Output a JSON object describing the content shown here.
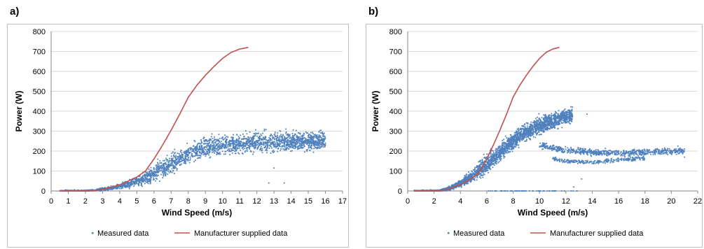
{
  "chart_data": [
    {
      "panel_label": "a)",
      "type": "scatter",
      "xlabel": "Wind Speed (m/s)",
      "ylabel": "Power (W)",
      "xlim": [
        0,
        17
      ],
      "ylim": [
        0,
        800
      ],
      "xticks": [
        0,
        1,
        2,
        3,
        4,
        5,
        6,
        7,
        8,
        9,
        10,
        11,
        12,
        13,
        14,
        15,
        16,
        17
      ],
      "yticks": [
        0,
        100,
        200,
        300,
        400,
        500,
        600,
        700,
        800
      ],
      "grid": "horizontal",
      "legend_position": "bottom",
      "series": [
        {
          "name": "Measured data",
          "kind": "scatter",
          "color": "#4f81bd",
          "trend": [
            [
              0.5,
              0
            ],
            [
              2.0,
              0
            ],
            [
              2.5,
              3
            ],
            [
              3.0,
              8
            ],
            [
              3.5,
              14
            ],
            [
              4.0,
              22
            ],
            [
              4.5,
              33
            ],
            [
              5.0,
              47
            ],
            [
              5.5,
              65
            ],
            [
              6.0,
              87
            ],
            [
              6.5,
              112
            ],
            [
              7.0,
              138
            ],
            [
              7.5,
              163
            ],
            [
              8.0,
              185
            ],
            [
              8.5,
              202
            ],
            [
              9.0,
              215
            ],
            [
              9.5,
              224
            ],
            [
              10.0,
              230
            ],
            [
              10.5,
              234
            ],
            [
              11.0,
              237
            ],
            [
              11.5,
              240
            ],
            [
              12.0,
              243
            ],
            [
              13.0,
              247
            ],
            [
              14.0,
              250
            ],
            [
              15.0,
              252
            ],
            [
              16.0,
              252
            ]
          ],
          "spread": 45,
          "outliers": [
            [
              13.0,
              115
            ],
            [
              13.6,
              40
            ],
            [
              12.7,
              40
            ],
            [
              14.4,
              270
            ],
            [
              15.2,
              265
            ],
            [
              15.9,
              255
            ],
            [
              16.0,
              240
            ],
            [
              14.8,
              245
            ]
          ]
        },
        {
          "name": "Manufacturer supplied data",
          "kind": "line",
          "color": "#c0504d",
          "points": [
            [
              0.5,
              0
            ],
            [
              2.5,
              0
            ],
            [
              3,
              8
            ],
            [
              4,
              30
            ],
            [
              4.5,
              50
            ],
            [
              5,
              70
            ],
            [
              5.5,
              100
            ],
            [
              6,
              160
            ],
            [
              6.5,
              230
            ],
            [
              7,
              305
            ],
            [
              7.5,
              385
            ],
            [
              8,
              470
            ],
            [
              8.5,
              530
            ],
            [
              9,
              580
            ],
            [
              9.5,
              625
            ],
            [
              10,
              665
            ],
            [
              10.5,
              695
            ],
            [
              11,
              712
            ],
            [
              11.5,
              720
            ]
          ]
        }
      ]
    },
    {
      "panel_label": "b)",
      "type": "scatter",
      "xlabel": "Wind Speed (m/s)",
      "ylabel": "Power (W)",
      "xlim": [
        0,
        22
      ],
      "ylim": [
        0,
        800
      ],
      "xticks": [
        0,
        2,
        4,
        6,
        8,
        10,
        12,
        14,
        16,
        18,
        20,
        22
      ],
      "yticks": [
        0,
        100,
        200,
        300,
        400,
        500,
        600,
        700,
        800
      ],
      "grid": "horizontal",
      "legend_position": "bottom",
      "series": [
        {
          "name": "Measured data",
          "kind": "scatter",
          "color": "#4f81bd",
          "trend": [
            [
              0.5,
              0
            ],
            [
              2.0,
              0
            ],
            [
              2.5,
              2
            ],
            [
              3.0,
              10
            ],
            [
              3.5,
              22
            ],
            [
              4.0,
              38
            ],
            [
              4.5,
              58
            ],
            [
              5.0,
              82
            ],
            [
              5.5,
              108
            ],
            [
              6.0,
              135
            ],
            [
              6.5,
              165
            ],
            [
              7.0,
              195
            ],
            [
              7.5,
              225
            ],
            [
              8.0,
              252
            ],
            [
              8.5,
              275
            ],
            [
              9.0,
              295
            ],
            [
              9.5,
              312
            ],
            [
              10.0,
              327
            ],
            [
              10.5,
              340
            ],
            [
              11.0,
              352
            ],
            [
              11.5,
              362
            ],
            [
              12.0,
              372
            ],
            [
              12.5,
              378
            ]
          ],
          "spread": 40,
          "plateau": [
            [
              10,
              230
            ],
            [
              11,
              215
            ],
            [
              12,
              205
            ],
            [
              13,
              200
            ],
            [
              14,
              195
            ],
            [
              16,
              190
            ],
            [
              18,
              195
            ],
            [
              20,
              200
            ],
            [
              21,
              200
            ]
          ],
          "lower_band": [
            [
              11,
              160
            ],
            [
              12,
              150
            ],
            [
              13,
              145
            ],
            [
              14,
              145
            ],
            [
              15,
              150
            ],
            [
              16,
              155
            ],
            [
              17,
              160
            ],
            [
              18,
              165
            ]
          ],
          "zero_row": [
            [
              6,
              0
            ],
            [
              13,
              0
            ]
          ],
          "outliers": [
            [
              13.2,
              60
            ],
            [
              12.6,
              20
            ],
            [
              13.6,
              385
            ],
            [
              20.5,
              225
            ],
            [
              21.0,
              170
            ]
          ]
        },
        {
          "name": "Manufacturer supplied data",
          "kind": "line",
          "color": "#c0504d",
          "points": [
            [
              0.5,
              0
            ],
            [
              2.5,
              0
            ],
            [
              3,
              8
            ],
            [
              4,
              30
            ],
            [
              4.5,
              50
            ],
            [
              5,
              70
            ],
            [
              5.5,
              100
            ],
            [
              6,
              160
            ],
            [
              6.5,
              230
            ],
            [
              7,
              305
            ],
            [
              7.5,
              385
            ],
            [
              8,
              470
            ],
            [
              8.5,
              530
            ],
            [
              9,
              580
            ],
            [
              9.5,
              625
            ],
            [
              10,
              665
            ],
            [
              10.5,
              695
            ],
            [
              11,
              712
            ],
            [
              11.5,
              720
            ]
          ]
        }
      ]
    }
  ]
}
